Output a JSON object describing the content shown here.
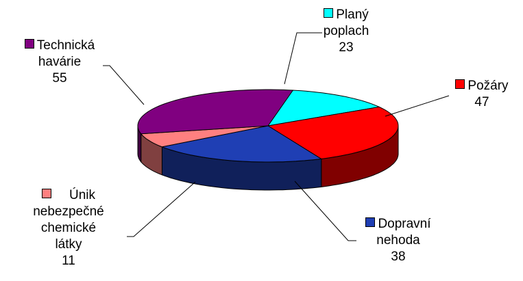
{
  "chart_data": {
    "type": "pie",
    "subtype": "3d-pie",
    "legend": "none",
    "slices": [
      {
        "label": "Planý poplach",
        "value": 23,
        "color": "#00FFFF"
      },
      {
        "label": "Požáry",
        "value": 47,
        "color": "#FF0000"
      },
      {
        "label": "Dopravní nehoda",
        "value": 38,
        "color": "#1F3FB4"
      },
      {
        "label": "Únik nebezpečné chemické látky",
        "value": 11,
        "color": "#FF8080"
      },
      {
        "label": "Technická havárie",
        "value": 55,
        "color": "#800080"
      }
    ]
  },
  "labels": {
    "plany": {
      "line1": "Planý",
      "line2": "poplach",
      "value": "23"
    },
    "pozary": {
      "line1": "Požáry",
      "value": "47"
    },
    "dopravni": {
      "line1": "Dopravní",
      "line2": "nehoda",
      "value": "38"
    },
    "unik": {
      "line1": "Únik",
      "line2": "nebezpečné",
      "line3": "chemické",
      "line4": "látky",
      "value": "11"
    },
    "technicka": {
      "line1": "Technická",
      "line2": "havárie",
      "value": "55"
    }
  }
}
